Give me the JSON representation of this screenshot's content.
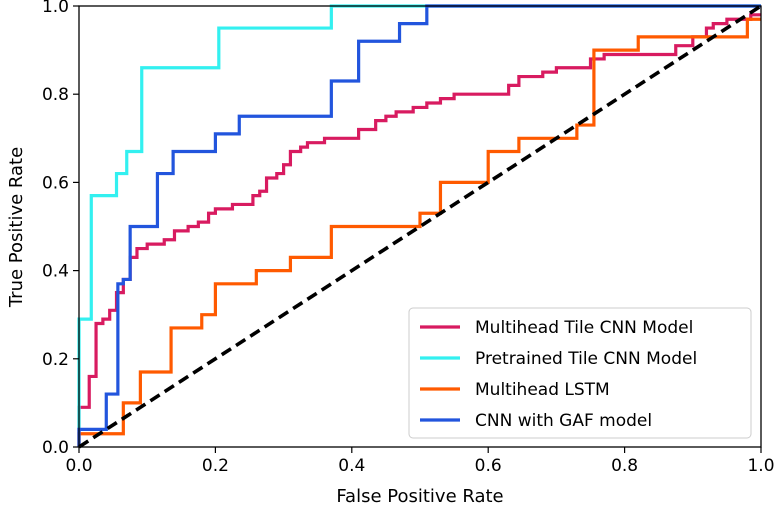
{
  "chart_data": {
    "type": "line",
    "title": "",
    "xlabel": "False Positive Rate",
    "ylabel": "True Positive Rate",
    "xlim": [
      0,
      1
    ],
    "ylim": [
      0,
      1
    ],
    "xticks": [
      "0.0",
      "0.2",
      "0.4",
      "0.6",
      "0.8",
      "1.0"
    ],
    "yticks": [
      "0.0",
      "0.2",
      "0.4",
      "0.6",
      "0.8",
      "1.0"
    ],
    "grid": false,
    "legend_position": "lower-right",
    "series": [
      {
        "name": "Multihead Tile CNN Model",
        "color": "#d81b60",
        "style": "solid",
        "points": [
          [
            0,
            0
          ],
          [
            0,
            0.09
          ],
          [
            0.015,
            0.09
          ],
          [
            0.015,
            0.16
          ],
          [
            0.025,
            0.16
          ],
          [
            0.025,
            0.28
          ],
          [
            0.035,
            0.28
          ],
          [
            0.035,
            0.29
          ],
          [
            0.045,
            0.29
          ],
          [
            0.045,
            0.31
          ],
          [
            0.055,
            0.31
          ],
          [
            0.055,
            0.35
          ],
          [
            0.065,
            0.35
          ],
          [
            0.065,
            0.38
          ],
          [
            0.075,
            0.38
          ],
          [
            0.075,
            0.43
          ],
          [
            0.085,
            0.43
          ],
          [
            0.085,
            0.45
          ],
          [
            0.1,
            0.45
          ],
          [
            0.1,
            0.46
          ],
          [
            0.125,
            0.46
          ],
          [
            0.125,
            0.47
          ],
          [
            0.14,
            0.47
          ],
          [
            0.14,
            0.49
          ],
          [
            0.16,
            0.49
          ],
          [
            0.16,
            0.5
          ],
          [
            0.175,
            0.5
          ],
          [
            0.175,
            0.51
          ],
          [
            0.19,
            0.51
          ],
          [
            0.19,
            0.53
          ],
          [
            0.2,
            0.53
          ],
          [
            0.2,
            0.54
          ],
          [
            0.225,
            0.54
          ],
          [
            0.225,
            0.55
          ],
          [
            0.255,
            0.55
          ],
          [
            0.255,
            0.57
          ],
          [
            0.265,
            0.57
          ],
          [
            0.265,
            0.58
          ],
          [
            0.275,
            0.58
          ],
          [
            0.275,
            0.61
          ],
          [
            0.29,
            0.61
          ],
          [
            0.29,
            0.62
          ],
          [
            0.3,
            0.62
          ],
          [
            0.3,
            0.64
          ],
          [
            0.31,
            0.64
          ],
          [
            0.31,
            0.67
          ],
          [
            0.325,
            0.67
          ],
          [
            0.325,
            0.68
          ],
          [
            0.335,
            0.68
          ],
          [
            0.335,
            0.69
          ],
          [
            0.36,
            0.69
          ],
          [
            0.36,
            0.7
          ],
          [
            0.41,
            0.7
          ],
          [
            0.41,
            0.72
          ],
          [
            0.435,
            0.72
          ],
          [
            0.435,
            0.74
          ],
          [
            0.45,
            0.74
          ],
          [
            0.45,
            0.75
          ],
          [
            0.465,
            0.75
          ],
          [
            0.465,
            0.76
          ],
          [
            0.49,
            0.76
          ],
          [
            0.49,
            0.77
          ],
          [
            0.51,
            0.77
          ],
          [
            0.51,
            0.78
          ],
          [
            0.53,
            0.78
          ],
          [
            0.53,
            0.79
          ],
          [
            0.55,
            0.79
          ],
          [
            0.55,
            0.8
          ],
          [
            0.63,
            0.8
          ],
          [
            0.63,
            0.82
          ],
          [
            0.645,
            0.82
          ],
          [
            0.645,
            0.84
          ],
          [
            0.68,
            0.84
          ],
          [
            0.68,
            0.85
          ],
          [
            0.7,
            0.85
          ],
          [
            0.7,
            0.86
          ],
          [
            0.75,
            0.86
          ],
          [
            0.75,
            0.88
          ],
          [
            0.77,
            0.88
          ],
          [
            0.77,
            0.89
          ],
          [
            0.875,
            0.89
          ],
          [
            0.875,
            0.91
          ],
          [
            0.9,
            0.91
          ],
          [
            0.9,
            0.93
          ],
          [
            0.92,
            0.93
          ],
          [
            0.92,
            0.95
          ],
          [
            0.93,
            0.95
          ],
          [
            0.93,
            0.96
          ],
          [
            0.95,
            0.96
          ],
          [
            0.95,
            0.97
          ],
          [
            0.985,
            0.97
          ],
          [
            0.985,
            0.98
          ],
          [
            1,
            0.98
          ]
        ]
      },
      {
        "name": "Pretrained Tile CNN Model",
        "color": "#33f0f0",
        "style": "solid",
        "points": [
          [
            0,
            0
          ],
          [
            0,
            0.29
          ],
          [
            0.018,
            0.29
          ],
          [
            0.018,
            0.57
          ],
          [
            0.055,
            0.57
          ],
          [
            0.055,
            0.62
          ],
          [
            0.07,
            0.62
          ],
          [
            0.07,
            0.67
          ],
          [
            0.092,
            0.67
          ],
          [
            0.092,
            0.86
          ],
          [
            0.205,
            0.86
          ],
          [
            0.205,
            0.95
          ],
          [
            0.37,
            0.95
          ],
          [
            0.37,
            1.0
          ],
          [
            1,
            1.0
          ]
        ]
      },
      {
        "name": "Multihead LSTM",
        "color": "#ff5a00",
        "style": "solid",
        "points": [
          [
            0,
            0
          ],
          [
            0,
            0.03
          ],
          [
            0.065,
            0.03
          ],
          [
            0.065,
            0.1
          ],
          [
            0.09,
            0.1
          ],
          [
            0.09,
            0.17
          ],
          [
            0.135,
            0.17
          ],
          [
            0.135,
            0.27
          ],
          [
            0.18,
            0.27
          ],
          [
            0.18,
            0.3
          ],
          [
            0.2,
            0.3
          ],
          [
            0.2,
            0.37
          ],
          [
            0.26,
            0.37
          ],
          [
            0.26,
            0.4
          ],
          [
            0.31,
            0.4
          ],
          [
            0.31,
            0.43
          ],
          [
            0.37,
            0.43
          ],
          [
            0.37,
            0.5
          ],
          [
            0.5,
            0.5
          ],
          [
            0.5,
            0.53
          ],
          [
            0.53,
            0.53
          ],
          [
            0.53,
            0.6
          ],
          [
            0.6,
            0.6
          ],
          [
            0.6,
            0.67
          ],
          [
            0.645,
            0.67
          ],
          [
            0.645,
            0.7
          ],
          [
            0.73,
            0.7
          ],
          [
            0.73,
            0.73
          ],
          [
            0.755,
            0.73
          ],
          [
            0.755,
            0.9
          ],
          [
            0.82,
            0.9
          ],
          [
            0.82,
            0.93
          ],
          [
            0.98,
            0.93
          ],
          [
            0.98,
            0.97
          ],
          [
            1,
            0.97
          ]
        ]
      },
      {
        "name": "CNN with GAF model",
        "color": "#2255dd",
        "style": "solid",
        "points": [
          [
            0,
            0
          ],
          [
            0,
            0.04
          ],
          [
            0.04,
            0.04
          ],
          [
            0.04,
            0.12
          ],
          [
            0.057,
            0.12
          ],
          [
            0.057,
            0.37
          ],
          [
            0.065,
            0.37
          ],
          [
            0.065,
            0.38
          ],
          [
            0.075,
            0.38
          ],
          [
            0.075,
            0.5
          ],
          [
            0.115,
            0.5
          ],
          [
            0.115,
            0.62
          ],
          [
            0.138,
            0.62
          ],
          [
            0.138,
            0.67
          ],
          [
            0.2,
            0.67
          ],
          [
            0.2,
            0.71
          ],
          [
            0.235,
            0.71
          ],
          [
            0.235,
            0.75
          ],
          [
            0.37,
            0.75
          ],
          [
            0.37,
            0.83
          ],
          [
            0.41,
            0.83
          ],
          [
            0.41,
            0.92
          ],
          [
            0.47,
            0.92
          ],
          [
            0.47,
            0.96
          ],
          [
            0.51,
            0.96
          ],
          [
            0.51,
            1.0
          ],
          [
            1,
            1.0
          ]
        ]
      },
      {
        "name": "",
        "color": "#000000",
        "style": "dashed",
        "points": [
          [
            0,
            0
          ],
          [
            1,
            1
          ]
        ]
      }
    ]
  }
}
